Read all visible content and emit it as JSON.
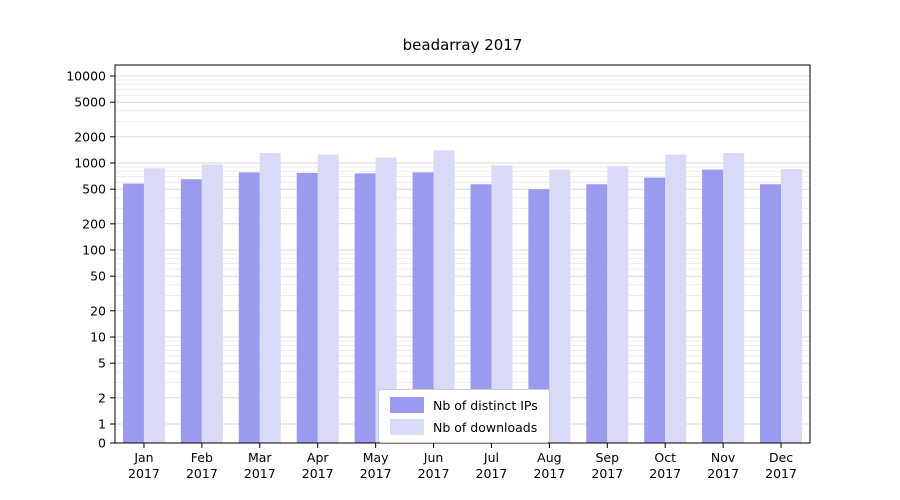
{
  "chart_data": {
    "type": "bar",
    "title": "beadarray 2017",
    "categories": [
      "Jan",
      "Feb",
      "Mar",
      "Apr",
      "May",
      "Jun",
      "Jul",
      "Aug",
      "Sep",
      "Oct",
      "Nov",
      "Dec"
    ],
    "year": "2017",
    "series": [
      {
        "name": "Nb of distinct IPs",
        "color": "#9a9aee",
        "values": [
          580,
          650,
          780,
          770,
          760,
          780,
          570,
          500,
          570,
          680,
          840,
          570
        ]
      },
      {
        "name": "Nb of downloads",
        "color": "#d9d9f8",
        "values": [
          870,
          960,
          1300,
          1250,
          1150,
          1400,
          940,
          840,
          920,
          1250,
          1300,
          850
        ]
      }
    ],
    "y_scale": "symlog",
    "y_ticks": [
      0,
      1,
      2,
      5,
      10,
      20,
      50,
      100,
      200,
      500,
      1000,
      2000,
      5000,
      10000
    ],
    "ylim": [
      0,
      10000
    ],
    "grid": "horizontal-major-minor",
    "legend_position": "lower-center-inside"
  }
}
